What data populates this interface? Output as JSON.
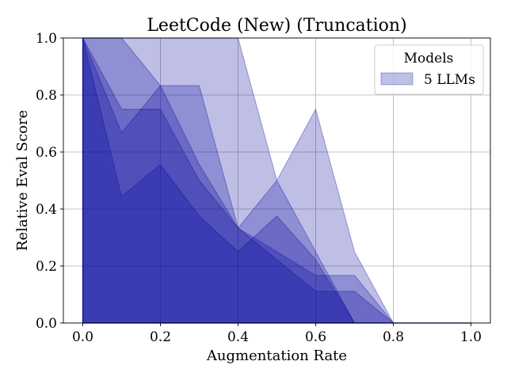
{
  "chart_data": {
    "type": "area",
    "title": "LeetCode (New) (Truncation)",
    "xlabel": "Augmentation Rate",
    "ylabel": "Relative Eval Score",
    "xlim": [
      -0.05,
      1.05
    ],
    "ylim": [
      0.0,
      1.0
    ],
    "x_ticks": [
      "0.0",
      "0.2",
      "0.4",
      "0.6",
      "0.8",
      "1.0"
    ],
    "y_ticks": [
      "0.0",
      "0.2",
      "0.4",
      "0.6",
      "0.8",
      "1.0"
    ],
    "grid": true,
    "legend": {
      "title": "Models",
      "position": "top-right",
      "entries": [
        "5 LLMs"
      ]
    },
    "fill_color": "#00009a",
    "x": [
      0.0,
      0.1,
      0.2,
      0.3,
      0.4,
      0.5,
      0.6,
      0.7,
      0.8,
      0.9,
      1.0
    ],
    "series": [
      {
        "values": [
          1.0,
          1.0,
          1.0,
          1.0,
          1.0,
          0.5,
          0.75,
          0.25,
          0.0,
          0.0,
          0.0
        ]
      },
      {
        "values": [
          1.0,
          1.0,
          0.833,
          0.833,
          0.333,
          0.5,
          0.25,
          0.0,
          0.0,
          0.0,
          0.0
        ]
      },
      {
        "values": [
          1.0,
          0.75,
          0.75,
          0.5,
          0.333,
          0.25,
          0.167,
          0.167,
          0.0,
          0.0,
          0.0
        ]
      },
      {
        "values": [
          1.0,
          0.667,
          0.833,
          0.556,
          0.333,
          0.222,
          0.111,
          0.111,
          0.0,
          0.0,
          0.0
        ]
      },
      {
        "values": [
          1.0,
          0.444,
          0.556,
          0.375,
          0.25,
          0.375,
          0.222,
          0.0,
          0.0,
          0.0,
          0.0
        ]
      }
    ]
  }
}
